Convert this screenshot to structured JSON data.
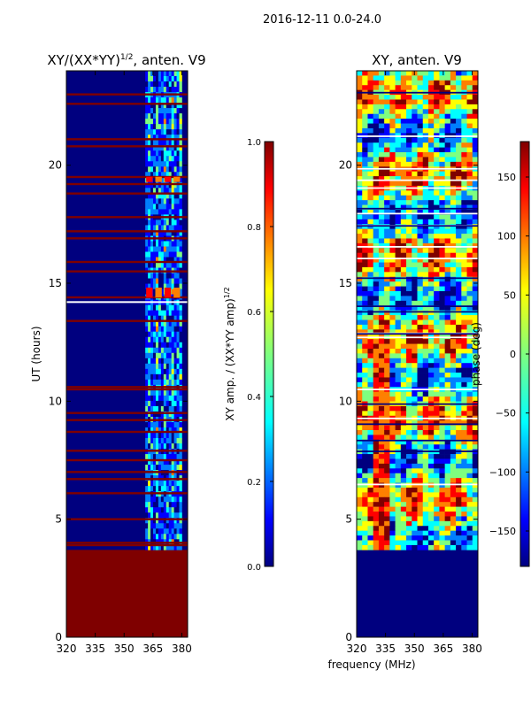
{
  "suptitle": "2016-12-11 0.0-24.0",
  "xlabel_shared": "frequency (MHz)",
  "colors": {
    "jet": [
      "#00007f",
      "#0000ff",
      "#007fff",
      "#00ffff",
      "#7fff7f",
      "#ffff00",
      "#ff7f00",
      "#ff0000",
      "#7f0000"
    ],
    "flag": "#7f0000",
    "lowband_phase": "#00007f"
  },
  "chart_data": [
    {
      "type": "heatmap",
      "title_base": "XY/(XX*YY)",
      "title_exp": "1/2",
      "title_suffix": ", anten. V9",
      "ylabel": "UT (hours)",
      "xlim": [
        320,
        383
      ],
      "ylim": [
        0,
        24
      ],
      "xticks": [
        320,
        335,
        350,
        365,
        380
      ],
      "yticks": [
        0,
        5,
        10,
        15,
        20
      ],
      "data_start_hour": 3.7,
      "band_mhz": [
        361,
        380
      ],
      "bright_rows_hours": [
        19.4,
        14.7,
        14.5
      ],
      "flag_rows_hours": [
        23.0,
        22.6,
        21.1,
        20.8,
        19.5,
        19.2,
        18.8,
        17.8,
        17.2,
        16.9,
        15.9,
        15.5,
        14.4,
        13.4,
        10.6,
        10.5,
        9.5,
        9.2,
        8.7,
        7.9,
        7.5,
        7.0,
        6.7,
        6.1,
        5.0,
        4.0,
        3.9
      ],
      "colorbar": {
        "label_base": "XY amp. / (XX*YY amp)",
        "label_exp": "1/2",
        "range": [
          0.0,
          1.0
        ],
        "ticks": [
          "0.0",
          "0.2",
          "0.4",
          "0.6",
          "0.8",
          "1.0"
        ]
      }
    },
    {
      "type": "heatmap",
      "title": "XY, anten. V9",
      "xlim": [
        320,
        383
      ],
      "ylim": [
        0,
        24
      ],
      "xticks": [
        320,
        335,
        350,
        365,
        380
      ],
      "yticks": [
        0,
        5,
        10,
        15,
        20
      ],
      "data_start_hour": 3.7,
      "colorbar": {
        "label": "phase (deg)",
        "range": [
          -180,
          180
        ],
        "ticks": [
          "−150",
          "−100",
          "−50",
          "0",
          "50",
          "100",
          "150"
        ]
      }
    }
  ]
}
